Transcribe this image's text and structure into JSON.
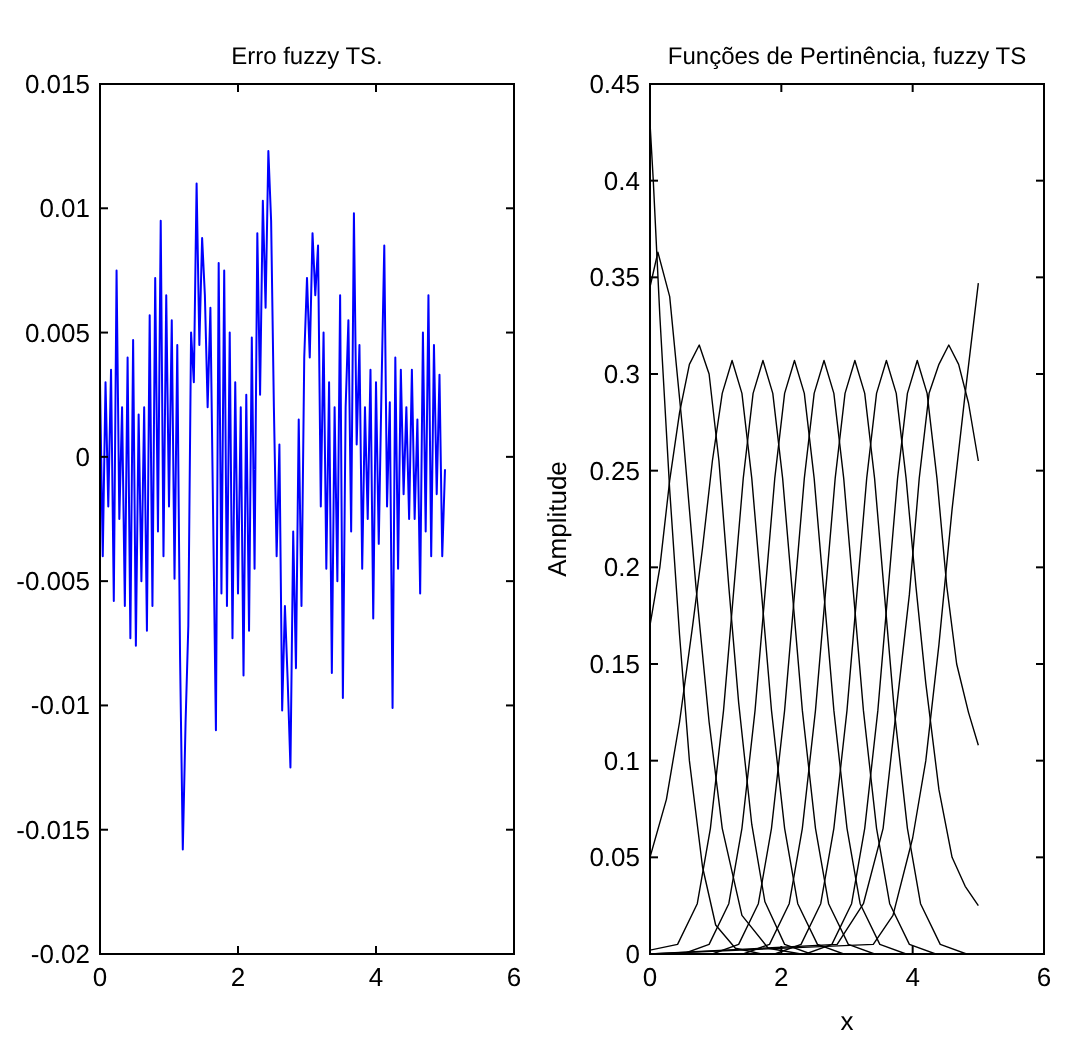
{
  "chart_data": [
    {
      "type": "line",
      "title": "Erro fuzzy TS.",
      "xlim": [
        0,
        6
      ],
      "xticks": [
        0,
        2,
        4,
        6
      ],
      "ylim": [
        -0.02,
        0.015
      ],
      "yticks": [
        -0.02,
        -0.015,
        -0.01,
        -0.005,
        0,
        0.005,
        0.01,
        0.015
      ],
      "series": [
        {
          "color": "#0000ff",
          "x": [
            0,
            0.04,
            0.08,
            0.12,
            0.16,
            0.2,
            0.24,
            0.28,
            0.32,
            0.36,
            0.4,
            0.44,
            0.48,
            0.52,
            0.56,
            0.6,
            0.64,
            0.68,
            0.72,
            0.76,
            0.8,
            0.84,
            0.88,
            0.92,
            0.96,
            1,
            1.04,
            1.08,
            1.12,
            1.16,
            1.2,
            1.24,
            1.28,
            1.32,
            1.36,
            1.4,
            1.44,
            1.48,
            1.52,
            1.56,
            1.6,
            1.64,
            1.68,
            1.72,
            1.76,
            1.8,
            1.84,
            1.88,
            1.92,
            1.96,
            2,
            2.04,
            2.08,
            2.12,
            2.16,
            2.2,
            2.24,
            2.28,
            2.32,
            2.36,
            2.4,
            2.44,
            2.48,
            2.52,
            2.56,
            2.6,
            2.64,
            2.68,
            2.72,
            2.76,
            2.8,
            2.84,
            2.88,
            2.92,
            2.96,
            3,
            3.04,
            3.08,
            3.12,
            3.16,
            3.2,
            3.24,
            3.28,
            3.32,
            3.36,
            3.4,
            3.44,
            3.48,
            3.52,
            3.56,
            3.6,
            3.64,
            3.68,
            3.72,
            3.76,
            3.8,
            3.84,
            3.88,
            3.92,
            3.96,
            4,
            4.04,
            4.08,
            4.12,
            4.16,
            4.2,
            4.24,
            4.28,
            4.32,
            4.36,
            4.4,
            4.44,
            4.48,
            4.52,
            4.56,
            4.6,
            4.64,
            4.68,
            4.72,
            4.76,
            4.8,
            4.84,
            4.88,
            4.92,
            4.96,
            5
          ],
          "values": [
            0.003,
            -0.004,
            0.003,
            -0.002,
            0.0035,
            -0.0058,
            0.0075,
            -0.0025,
            0.002,
            -0.006,
            0.004,
            -0.0073,
            0.0047,
            -0.0076,
            0.0017,
            -0.005,
            0.002,
            -0.007,
            0.0057,
            -0.006,
            0.0072,
            -0.003,
            0.0095,
            -0.004,
            0.0065,
            -0.002,
            0.0055,
            -0.0049,
            0.0045,
            -0.008,
            -0.0158,
            -0.0107,
            -0.0068,
            0.005,
            0.003,
            0.011,
            0.0045,
            0.0088,
            0.0065,
            0.002,
            0.006,
            -0.0025,
            -0.011,
            0.0078,
            -0.0055,
            0.0075,
            -0.006,
            0.005,
            -0.0073,
            0.003,
            -0.0055,
            0.002,
            -0.0088,
            0.0025,
            -0.007,
            0.0048,
            -0.0045,
            0.009,
            0.0025,
            0.0103,
            0.006,
            0.0123,
            0.0095,
            0.002,
            -0.004,
            0.0005,
            -0.0102,
            -0.006,
            -0.009,
            -0.0125,
            -0.003,
            -0.0085,
            0.0015,
            -0.006,
            0.004,
            0.0072,
            0.004,
            0.009,
            0.0065,
            0.0085,
            -0.002,
            0.005,
            -0.0045,
            0.003,
            -0.0087,
            0.002,
            -0.005,
            0.0065,
            -0.0097,
            0.002,
            0.0055,
            -0.003,
            0.0098,
            0.0005,
            0.0045,
            -0.0045,
            0.002,
            -0.0025,
            0.0035,
            -0.0065,
            0.003,
            -0.0035,
            0.0028,
            0.0085,
            -0.002,
            0.0022,
            -0.0101,
            0.004,
            -0.0045,
            0.0035,
            -0.0015,
            0.002,
            -0.0025,
            0.0035,
            -0.0025,
            0.0015,
            -0.0055,
            0.005,
            -0.003,
            0.0065,
            -0.004,
            0.0045,
            -0.0015,
            0.0033,
            -0.004,
            -0.0005
          ]
        }
      ]
    },
    {
      "type": "line",
      "title": "Funções de Pertinência, fuzzy TS",
      "xlabel": "x",
      "ylabel": "Amplitude",
      "xlim": [
        0,
        6
      ],
      "xticks": [
        0,
        2,
        4,
        6
      ],
      "ylim": [
        0,
        0.45
      ],
      "yticks": [
        0,
        0.05,
        0.1,
        0.15,
        0.2,
        0.25,
        0.3,
        0.35,
        0.4,
        0.45
      ],
      "series": [
        {
          "color": "#000000",
          "x": [
            0,
            0.05,
            0.15,
            0.3,
            0.45,
            0.6,
            0.8,
            1,
            1.3,
            1.7,
            5
          ],
          "values": [
            0.43,
            0.4,
            0.33,
            0.24,
            0.165,
            0.1,
            0.045,
            0.015,
            0.003,
            0,
            0
          ]
        },
        {
          "color": "#000000",
          "x": [
            0,
            0.12,
            0.3,
            0.5,
            0.7,
            0.9,
            1.1,
            1.4,
            1.8,
            2.3,
            5
          ],
          "values": [
            0.345,
            0.363,
            0.34,
            0.27,
            0.19,
            0.12,
            0.065,
            0.02,
            0.003,
            0,
            0
          ]
        },
        {
          "color": "#000000",
          "x": [
            0,
            0.15,
            0.3,
            0.45,
            0.6,
            0.75,
            0.9,
            1.05,
            1.2,
            1.35,
            1.55,
            1.75,
            2.05,
            2.45,
            5
          ],
          "values": [
            0.17,
            0.2,
            0.245,
            0.28,
            0.305,
            0.315,
            0.3,
            0.255,
            0.19,
            0.13,
            0.067,
            0.027,
            0.005,
            0,
            0
          ]
        },
        {
          "color": "#000000",
          "x": [
            0,
            0.25,
            0.45,
            0.65,
            0.8,
            0.95,
            1.1,
            1.25,
            1.4,
            1.55,
            1.7,
            1.85,
            2.05,
            2.25,
            2.55,
            2.95,
            5
          ],
          "values": [
            0.05,
            0.08,
            0.12,
            0.17,
            0.21,
            0.255,
            0.29,
            0.307,
            0.29,
            0.246,
            0.186,
            0.126,
            0.065,
            0.026,
            0.005,
            0,
            0
          ]
        },
        {
          "color": "#000000",
          "x": [
            0,
            0.42,
            0.72,
            0.92,
            1.12,
            1.27,
            1.42,
            1.57,
            1.72,
            1.87,
            2.02,
            2.17,
            2.32,
            2.52,
            2.72,
            3.02,
            3.42,
            5
          ],
          "values": [
            0.002,
            0.005,
            0.026,
            0.065,
            0.126,
            0.186,
            0.246,
            0.29,
            0.307,
            0.29,
            0.246,
            0.186,
            0.126,
            0.065,
            0.026,
            0.005,
            0,
            0
          ]
        },
        {
          "color": "#000000",
          "x": [
            0,
            0.5,
            0.9,
            1.2,
            1.4,
            1.6,
            1.75,
            1.9,
            2.05,
            2.2,
            2.35,
            2.5,
            2.65,
            2.8,
            3,
            3.2,
            3.5,
            3.9,
            5
          ],
          "values": [
            0,
            0,
            0.005,
            0.026,
            0.065,
            0.126,
            0.186,
            0.246,
            0.29,
            0.307,
            0.29,
            0.246,
            0.186,
            0.126,
            0.065,
            0.026,
            0.005,
            0,
            0
          ]
        },
        {
          "color": "#000000",
          "x": [
            0,
            0.95,
            1.35,
            1.65,
            1.85,
            2.05,
            2.2,
            2.35,
            2.5,
            2.65,
            2.8,
            2.95,
            3.1,
            3.25,
            3.45,
            3.65,
            3.95,
            4.35,
            5
          ],
          "values": [
            0,
            0,
            0.005,
            0.026,
            0.065,
            0.126,
            0.186,
            0.246,
            0.29,
            0.307,
            0.29,
            0.246,
            0.186,
            0.126,
            0.065,
            0.026,
            0.005,
            0,
            0
          ]
        },
        {
          "color": "#000000",
          "x": [
            0,
            1.42,
            1.82,
            2.12,
            2.32,
            2.52,
            2.67,
            2.82,
            2.97,
            3.12,
            3.27,
            3.42,
            3.57,
            3.72,
            3.92,
            4.12,
            4.42,
            4.82,
            5
          ],
          "values": [
            0,
            0,
            0.005,
            0.026,
            0.065,
            0.126,
            0.186,
            0.246,
            0.29,
            0.307,
            0.29,
            0.246,
            0.186,
            0.126,
            0.065,
            0.026,
            0.005,
            0,
            0
          ]
        },
        {
          "color": "#000000",
          "x": [
            0,
            1.9,
            2.3,
            2.6,
            2.8,
            3,
            3.15,
            3.3,
            3.45,
            3.6,
            3.75,
            3.9,
            4.05,
            4.2,
            4.4,
            4.6,
            4.8,
            5
          ],
          "values": [
            0,
            0,
            0.005,
            0.026,
            0.065,
            0.126,
            0.186,
            0.246,
            0.29,
            0.307,
            0.29,
            0.246,
            0.19,
            0.14,
            0.085,
            0.05,
            0.035,
            0.025
          ]
        },
        {
          "color": "#000000",
          "x": [
            0,
            2.37,
            2.77,
            3.07,
            3.27,
            3.47,
            3.62,
            3.77,
            3.92,
            4.07,
            4.22,
            4.37,
            4.52,
            4.67,
            4.85,
            5
          ],
          "values": [
            0,
            0,
            0.005,
            0.026,
            0.065,
            0.126,
            0.186,
            0.246,
            0.29,
            0.307,
            0.29,
            0.246,
            0.19,
            0.15,
            0.125,
            0.108
          ]
        },
        {
          "color": "#000000",
          "x": [
            0,
            2.85,
            3.25,
            3.55,
            3.75,
            3.95,
            4.1,
            4.25,
            4.4,
            4.55,
            4.7,
            4.85,
            5
          ],
          "values": [
            0,
            0.005,
            0.026,
            0.065,
            0.126,
            0.186,
            0.246,
            0.29,
            0.305,
            0.315,
            0.305,
            0.285,
            0.255
          ]
        },
        {
          "color": "#000000",
          "x": [
            0,
            3.4,
            3.7,
            4,
            4.2,
            4.4,
            4.6,
            4.8,
            5
          ],
          "values": [
            0,
            0.005,
            0.02,
            0.06,
            0.1,
            0.16,
            0.23,
            0.29,
            0.347
          ]
        }
      ]
    }
  ]
}
